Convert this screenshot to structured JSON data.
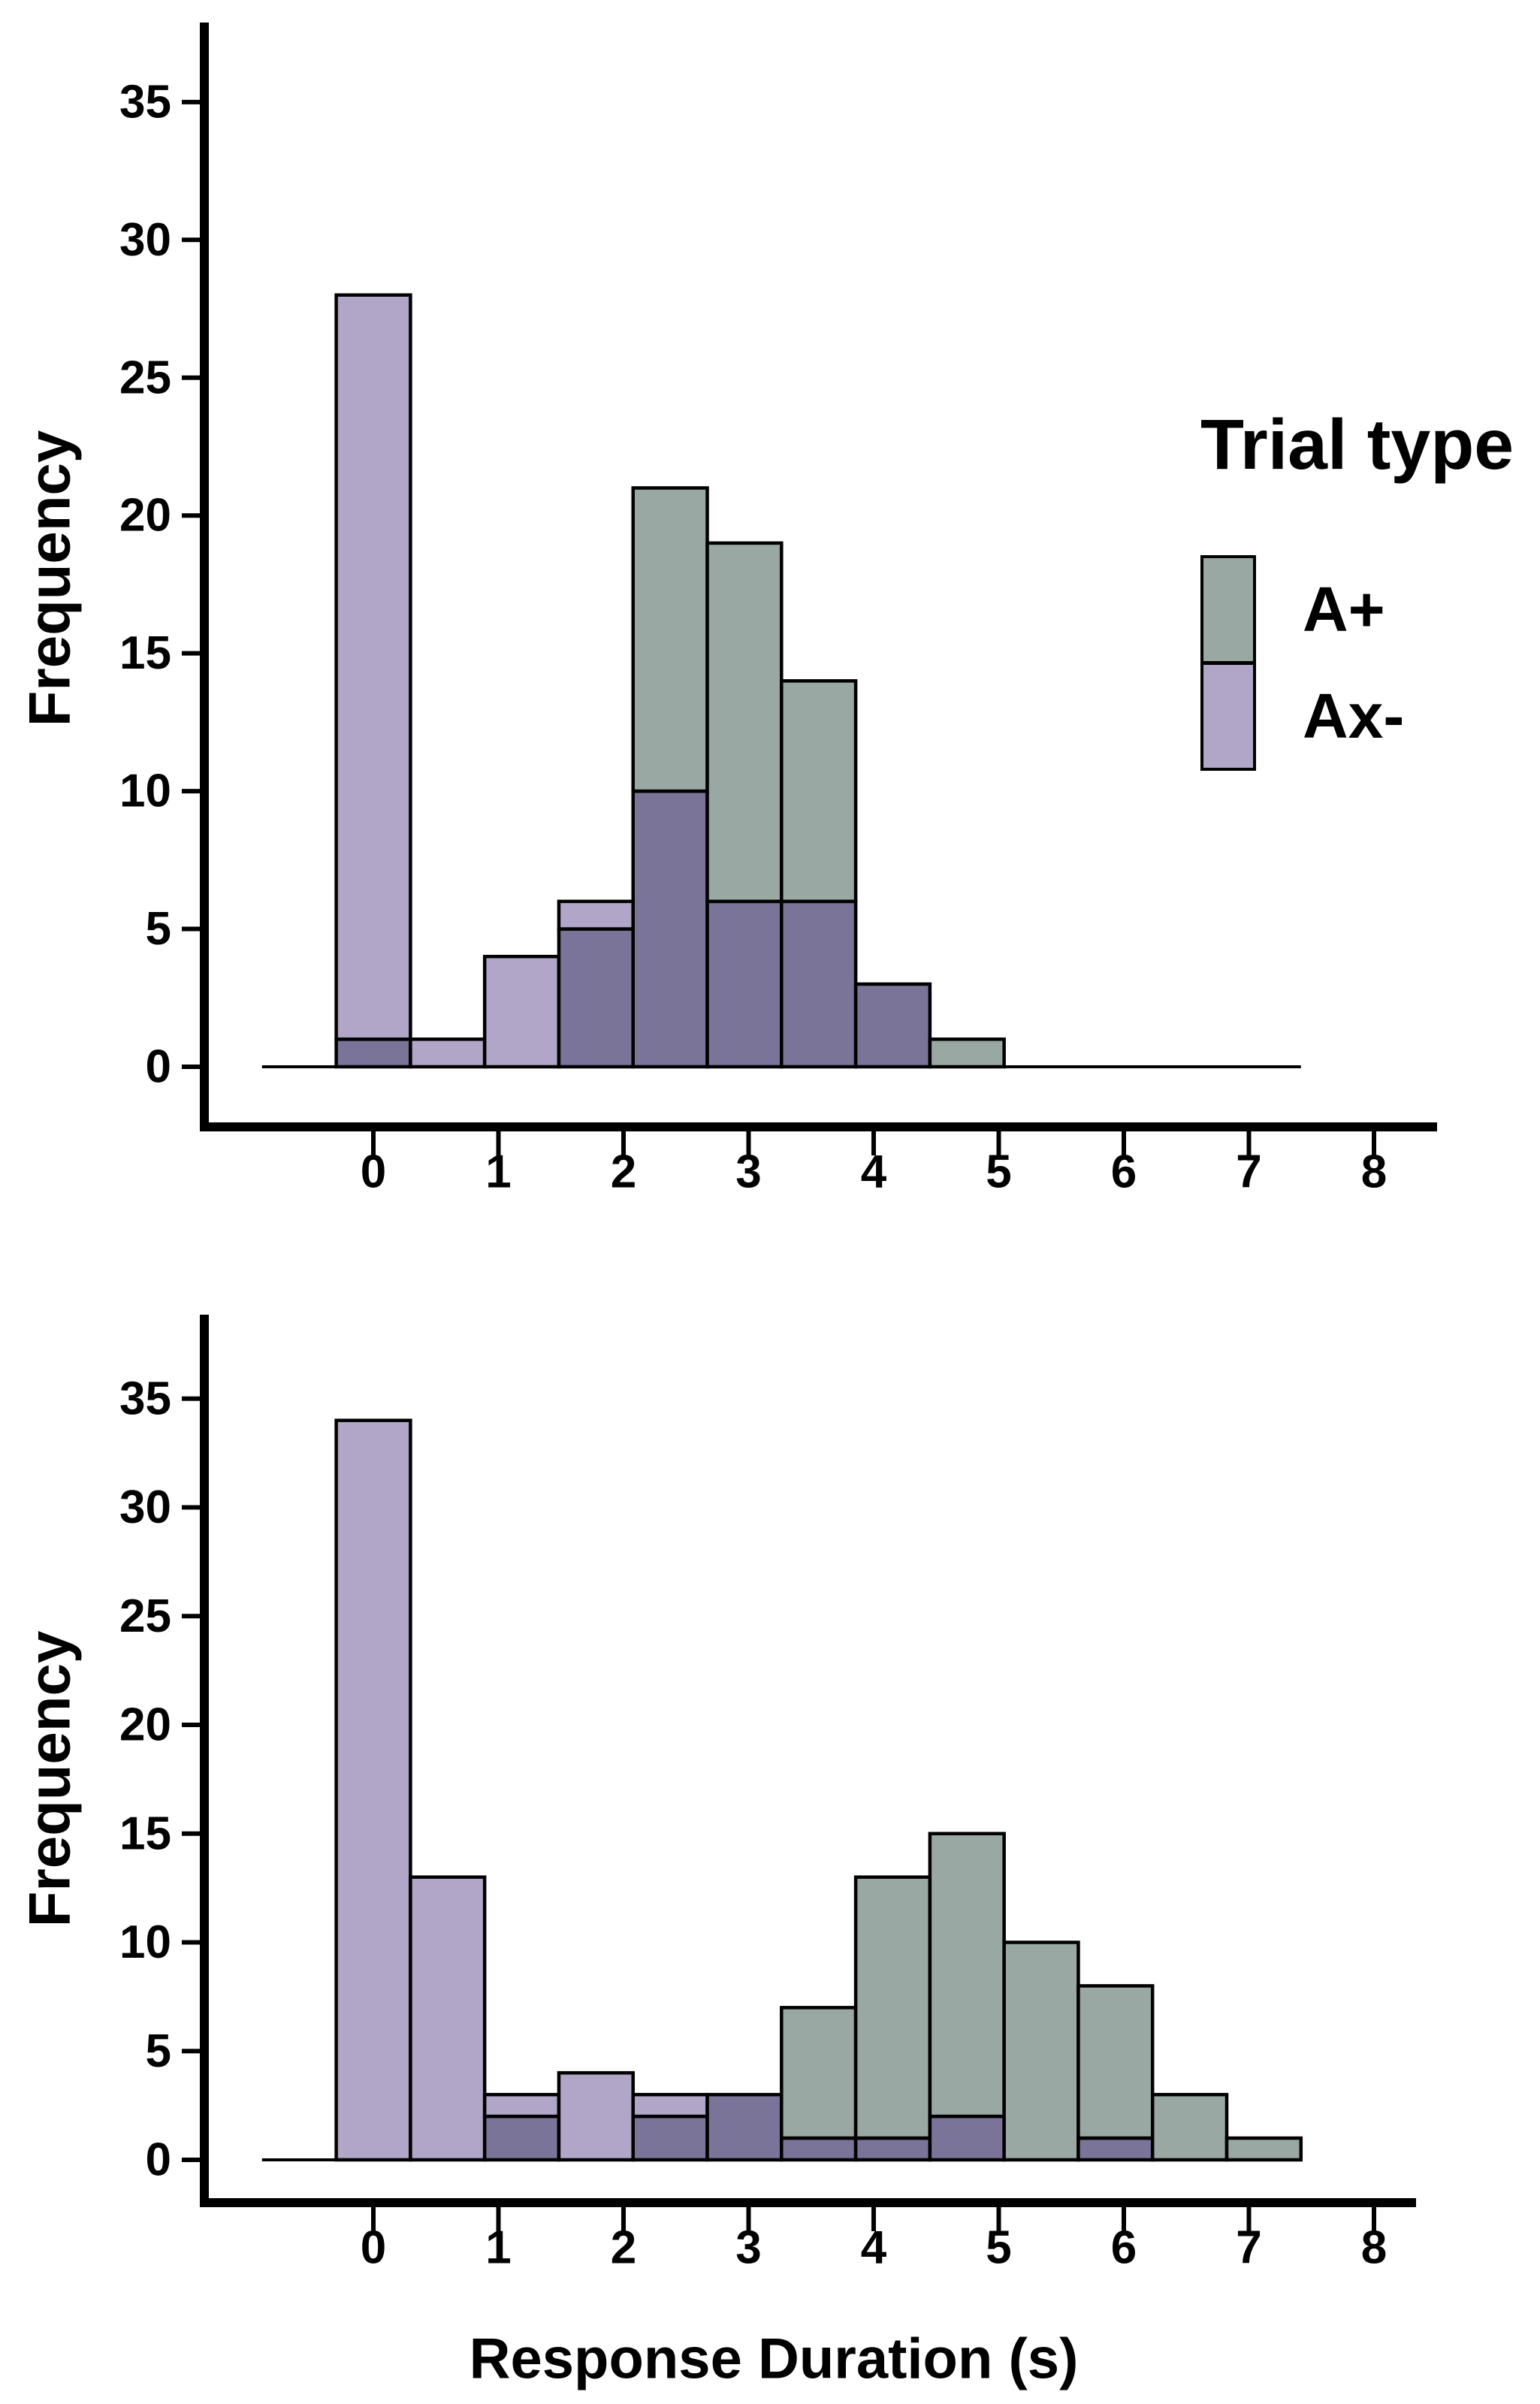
{
  "legend": {
    "title": "Trial type",
    "entries": [
      {
        "label": "A+",
        "color": "#99A8A2"
      },
      {
        "label": "Ax-",
        "color": "#B1A6C7"
      }
    ]
  },
  "chart_data": [
    {
      "type": "histogram",
      "panel": "top",
      "title": "",
      "xlabel": "",
      "ylabel": "Frequency",
      "x_ticks": [
        0,
        1,
        2,
        3,
        4,
        5,
        6,
        7,
        8
      ],
      "y_ticks": [
        0,
        5,
        10,
        15,
        20,
        25,
        30,
        35
      ],
      "xlim": [
        -1.4,
        8.5
      ],
      "ylim": [
        0,
        37.5
      ],
      "bin_start": -0.89,
      "bin_width": 0.5933,
      "n_bins": 14,
      "grid": "off",
      "legend_position": "inside-top-right",
      "series": [
        {
          "name": "A+",
          "color": "#99A8A2",
          "values": [
            0,
            1,
            0,
            0,
            5,
            21,
            19,
            14,
            3,
            1,
            0,
            0,
            0,
            0
          ]
        },
        {
          "name": "Ax-",
          "color": "#B1A6C7",
          "values": [
            0,
            28,
            1,
            4,
            6,
            10,
            6,
            6,
            3,
            0,
            0,
            0,
            0,
            0
          ]
        }
      ],
      "overlap_color": "#7A7498",
      "outline_color": "#000000"
    },
    {
      "type": "histogram",
      "panel": "bottom",
      "title": "",
      "xlabel": "Response Duration (s)",
      "ylabel": "Frequency",
      "x_ticks": [
        0,
        1,
        2,
        3,
        4,
        5,
        6,
        7,
        8
      ],
      "y_ticks": [
        0,
        5,
        10,
        15,
        20,
        25,
        30,
        35
      ],
      "xlim": [
        -1.4,
        8.5
      ],
      "ylim": [
        0,
        37.5
      ],
      "bin_start": -0.89,
      "bin_width": 0.5933,
      "n_bins": 14,
      "grid": "off",
      "legend_position": "none",
      "series": [
        {
          "name": "A+",
          "color": "#99A8A2",
          "values": [
            0,
            0,
            0,
            2,
            0,
            2,
            3,
            7,
            13,
            15,
            10,
            8,
            3,
            1
          ]
        },
        {
          "name": "Ax-",
          "color": "#B1A6C7",
          "values": [
            0,
            34,
            13,
            3,
            4,
            3,
            3,
            1,
            1,
            2,
            0,
            1,
            0,
            0
          ]
        }
      ],
      "overlap_color": "#7A7498",
      "outline_color": "#000000"
    }
  ]
}
